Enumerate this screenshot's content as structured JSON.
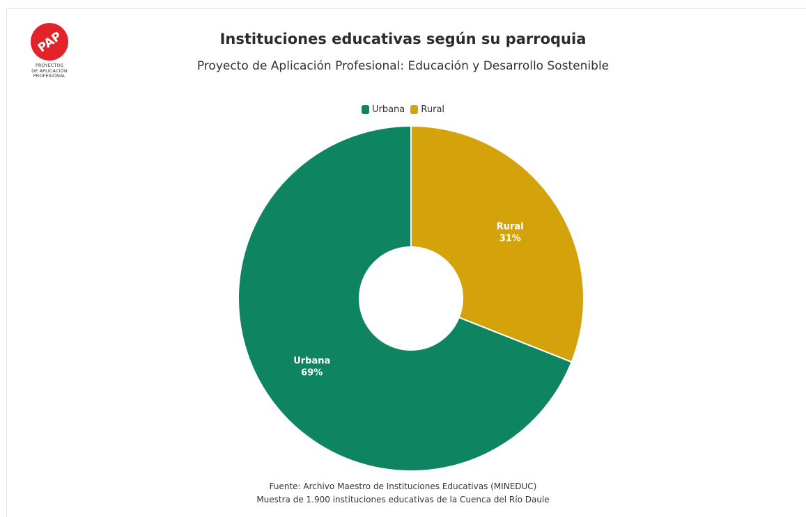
{
  "logo": {
    "badge_text": "PAP",
    "lines": [
      "PROYECTOS",
      "DE APLICACIÓN",
      "PROFESIONAL"
    ],
    "color": "#e2232a"
  },
  "title": "Instituciones educativas según su parroquia",
  "subtitle": "Proyecto de Aplicación Profesional: Educación y Desarrollo Sostenible",
  "legend": [
    {
      "label": "Urbana",
      "color": "#0e8460"
    },
    {
      "label": "Rural",
      "color": "#d4a30c"
    }
  ],
  "chart_data": {
    "type": "pie",
    "variant": "donut",
    "categories": [
      "Urbana",
      "Rural"
    ],
    "values": [
      69,
      31
    ],
    "unit": "%",
    "colors": [
      "#0e8460",
      "#d4a30c"
    ],
    "data_labels": [
      {
        "name": "Urbana",
        "value": "69%"
      },
      {
        "name": "Rural",
        "value": "31%"
      }
    ],
    "legend_position": "top-center"
  },
  "footer": {
    "source": "Fuente: Archivo Maestro de Instituciones Educativas (MINEDUC)",
    "sample": "Muestra de 1.900 instituciones educativas de la Cuenca del Río Daule"
  }
}
